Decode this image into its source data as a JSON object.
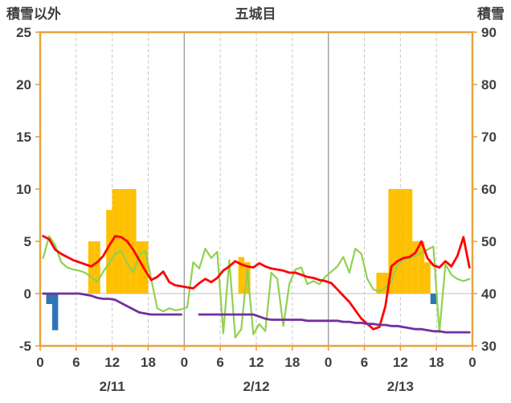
{
  "chart_data": {
    "type": "line",
    "title": "五城目",
    "left_axis": {
      "title": "積雪以外",
      "min": -5,
      "max": 25,
      "ticks": [
        25,
        20,
        15,
        10,
        5,
        0,
        -5
      ]
    },
    "right_axis": {
      "title": "積雪",
      "min": 30,
      "max": 90,
      "ticks": [
        90,
        80,
        70,
        60,
        50,
        40,
        30
      ]
    },
    "x_total_hours": 72,
    "x_tick_hours": [
      0,
      6,
      12,
      18,
      24,
      30,
      36,
      42,
      48,
      54,
      60,
      66,
      72
    ],
    "x_tick_labels": [
      "0",
      "6",
      "12",
      "18",
      "0",
      "6",
      "12",
      "18",
      "0",
      "6",
      "12",
      "18",
      "0"
    ],
    "days": [
      "2/11",
      "2/12",
      "2/13"
    ],
    "grid": {
      "horizontal": false,
      "vertical_every_hours": 6,
      "day_separators": true
    },
    "legend_position": "none",
    "colors": {
      "frame": "#E8A33C",
      "grid_minor": "#C6C6C6",
      "grid_major": "#9E9E9E",
      "zero_line": "#BFBFBF",
      "text": "#3F3F3F",
      "snowfall_bar": "#FFC000",
      "negative_bar": "#2E75B6",
      "temperature_line": "#FF0000",
      "green_line": "#92D050",
      "snow_depth_line": "#7030A0"
    },
    "series": [
      {
        "name": "snowfall-bars",
        "type": "bar",
        "axis": "left",
        "color": "#FFC000",
        "values": [
          0,
          0,
          0,
          0,
          0,
          0,
          0,
          0,
          5,
          5,
          0,
          8,
          10,
          10,
          10,
          10,
          5,
          5,
          0,
          0,
          0,
          0,
          0,
          0,
          0,
          0,
          0,
          0,
          0,
          0,
          0,
          0,
          0,
          3.5,
          3,
          0,
          0,
          0,
          0,
          0,
          0,
          0,
          0,
          0,
          0,
          0,
          0,
          0,
          0,
          0,
          0,
          0,
          0,
          0,
          0,
          0,
          2,
          2,
          10,
          10,
          10,
          10,
          5,
          5,
          3,
          0,
          0,
          0,
          0,
          0,
          0,
          0
        ]
      },
      {
        "name": "negative-bars",
        "type": "bar",
        "axis": "left",
        "color": "#2E75B6",
        "values": [
          0,
          -1,
          -3.5,
          0,
          0,
          0,
          0,
          0,
          0,
          0,
          0,
          0,
          0,
          0,
          0,
          0,
          0,
          0,
          0,
          0,
          0,
          0,
          0,
          0,
          0,
          0,
          0,
          0,
          0,
          0,
          0,
          0,
          0,
          0,
          0,
          0,
          0,
          0,
          0,
          0,
          0,
          0,
          0,
          0,
          0,
          0,
          0,
          0,
          0,
          0,
          0,
          0,
          0,
          0,
          0,
          0,
          0,
          0,
          0,
          0,
          0,
          0,
          0,
          0,
          0,
          -1,
          0,
          0,
          0,
          0,
          0,
          0
        ]
      },
      {
        "name": "green-series",
        "type": "line",
        "axis": "left",
        "color": "#92D050",
        "width": 2.2,
        "values": [
          3.4,
          5.5,
          4.6,
          3.0,
          2.5,
          2.3,
          2.2,
          2.0,
          1.6,
          1.1,
          2.1,
          2.9,
          3.8,
          4.1,
          2.9,
          2.0,
          3.7,
          4.1,
          1.4,
          -1.4,
          -1.7,
          -1.4,
          -1.6,
          -1.5,
          -1.3,
          3.0,
          2.4,
          4.3,
          3.4,
          4.0,
          -3.8,
          3.2,
          -4.2,
          -3.4,
          2.4,
          -3.9,
          -2.9,
          -3.6,
          2.0,
          1.4,
          -3.1,
          0.9,
          2.3,
          2.5,
          0.9,
          1.2,
          0.9,
          1.6,
          2.1,
          2.6,
          3.5,
          2.0,
          4.3,
          3.8,
          1.4,
          0.4,
          0.2,
          0.6,
          1.1,
          2.8,
          3.2,
          3.4,
          3.6,
          3.9,
          4.2,
          4.5,
          -3.7,
          2.8,
          1.8,
          1.4,
          1.2,
          1.4
        ]
      },
      {
        "name": "temperature",
        "type": "line",
        "axis": "left",
        "color": "#FF0000",
        "width": 2.8,
        "values": [
          5.5,
          5.2,
          4.2,
          3.8,
          3.5,
          3.2,
          3.0,
          2.8,
          2.6,
          3.0,
          3.6,
          4.6,
          5.5,
          5.4,
          5.0,
          4.2,
          3.2,
          2.2,
          1.3,
          1.6,
          2.1,
          1.1,
          0.8,
          0.7,
          0.6,
          0.5,
          1.0,
          1.4,
          1.1,
          1.5,
          2.2,
          2.6,
          3.1,
          2.8,
          2.6,
          2.5,
          2.9,
          2.6,
          2.4,
          2.3,
          2.2,
          2.0,
          2.0,
          1.8,
          1.6,
          1.5,
          1.3,
          1.2,
          1.0,
          0.4,
          -0.2,
          -0.8,
          -1.6,
          -2.4,
          -2.9,
          -3.4,
          -3.2,
          -1.2,
          2.6,
          3.1,
          3.4,
          3.5,
          3.9,
          5.0,
          3.4,
          2.7,
          2.5,
          3.1,
          2.6,
          3.6,
          5.4,
          2.5
        ]
      },
      {
        "name": "snow-depth",
        "type": "line",
        "axis": "right",
        "color": "#7030A0",
        "width": 2.8,
        "values": [
          40,
          40,
          40,
          40,
          40,
          40,
          40,
          39.8,
          39.6,
          39.2,
          39,
          39,
          38.8,
          38.2,
          37.6,
          37,
          36.4,
          36.2,
          36,
          36,
          36,
          36,
          36,
          36,
          null,
          null,
          36,
          36,
          36,
          36,
          36,
          36,
          36,
          36,
          36,
          36,
          35.6,
          35.2,
          35,
          35,
          35,
          35,
          35,
          35,
          34.8,
          34.8,
          34.8,
          34.8,
          34.8,
          34.8,
          34.6,
          34.6,
          34.4,
          34.4,
          34.2,
          34.2,
          34,
          34,
          33.8,
          33.8,
          33.6,
          33.4,
          33.2,
          33.2,
          33,
          32.8,
          32.8,
          32.6,
          32.6,
          32.6,
          32.6,
          32.6
        ]
      }
    ]
  }
}
